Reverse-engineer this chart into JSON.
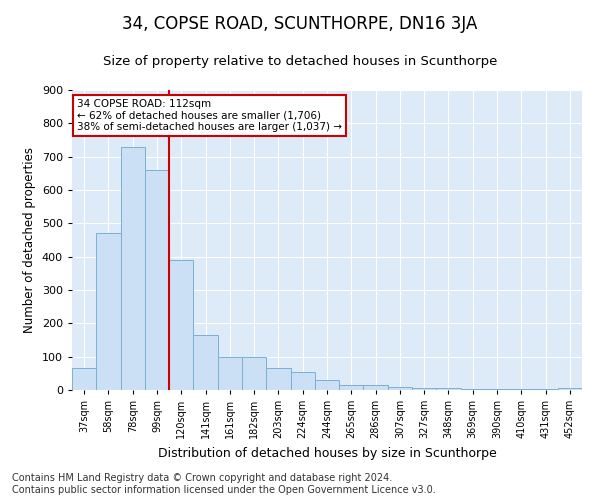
{
  "title": "34, COPSE ROAD, SCUNTHORPE, DN16 3JA",
  "subtitle": "Size of property relative to detached houses in Scunthorpe",
  "xlabel": "Distribution of detached houses by size in Scunthorpe",
  "ylabel": "Number of detached properties",
  "categories": [
    "37sqm",
    "58sqm",
    "78sqm",
    "99sqm",
    "120sqm",
    "141sqm",
    "161sqm",
    "182sqm",
    "203sqm",
    "224sqm",
    "244sqm",
    "265sqm",
    "286sqm",
    "307sqm",
    "327sqm",
    "348sqm",
    "369sqm",
    "390sqm",
    "410sqm",
    "431sqm",
    "452sqm"
  ],
  "values": [
    65,
    470,
    730,
    660,
    390,
    165,
    100,
    100,
    65,
    55,
    30,
    15,
    15,
    10,
    5,
    5,
    3,
    2,
    2,
    2,
    5
  ],
  "bar_facecolor": "#cce0f5",
  "bar_edgecolor": "#7ab0d4",
  "red_line_color": "#cc0000",
  "red_line_x": 3.5,
  "ylim": [
    0,
    900
  ],
  "yticks": [
    0,
    100,
    200,
    300,
    400,
    500,
    600,
    700,
    800,
    900
  ],
  "annotation_text": "34 COPSE ROAD: 112sqm\n← 62% of detached houses are smaller (1,706)\n38% of semi-detached houses are larger (1,037) →",
  "annotation_box_facecolor": "#ffffff",
  "annotation_box_edgecolor": "#cc0000",
  "footer_line1": "Contains HM Land Registry data © Crown copyright and database right 2024.",
  "footer_line2": "Contains public sector information licensed under the Open Government Licence v3.0.",
  "plot_bg_color": "#ddeaf7",
  "fig_bg_color": "#ffffff",
  "title_fontsize": 12,
  "subtitle_fontsize": 9.5,
  "ylabel_fontsize": 8.5,
  "xlabel_fontsize": 9,
  "tick_fontsize": 7,
  "footer_fontsize": 7,
  "annotation_fontsize": 7.5
}
